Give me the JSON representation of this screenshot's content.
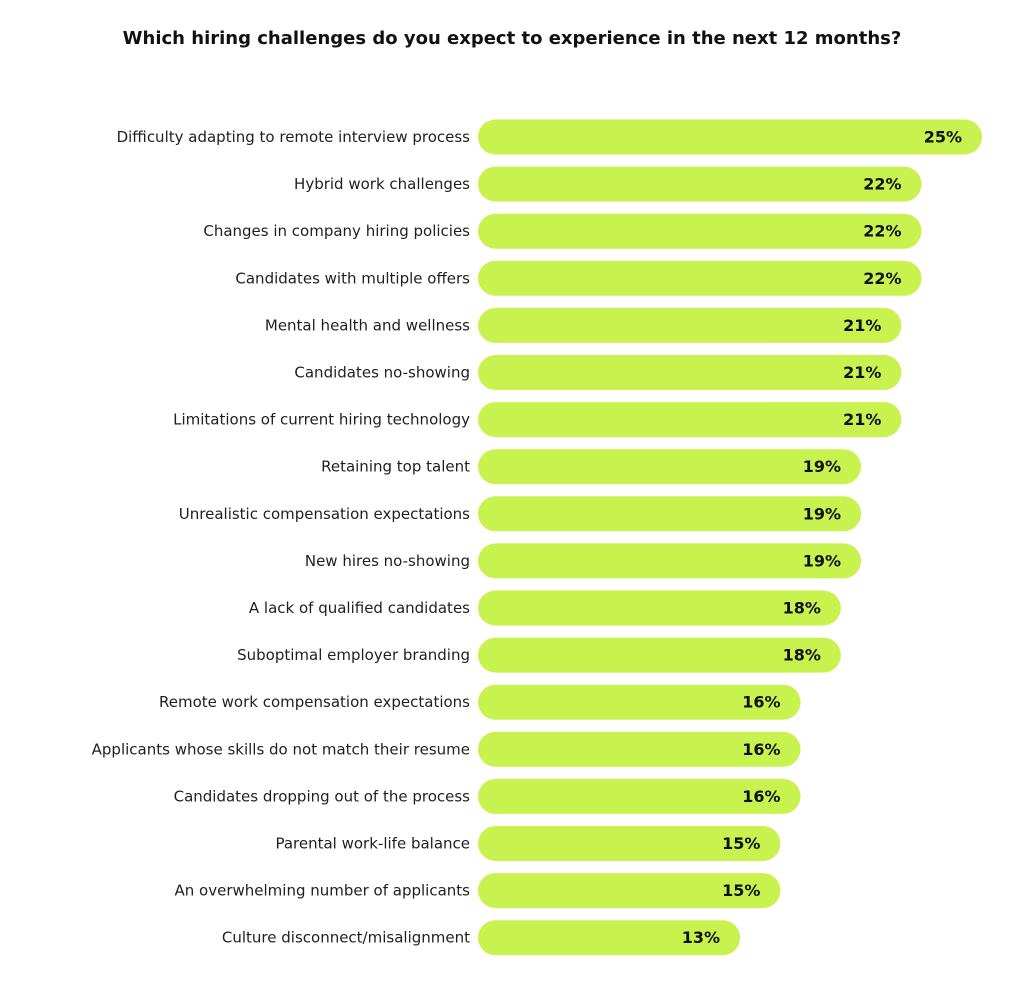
{
  "chart_data": {
    "type": "bar",
    "orientation": "horizontal",
    "title": "Which hiring challenges do you expect to experience in the next 12 months?",
    "categories": [
      "Difficulty adapting to remote interview process",
      "Hybrid work challenges",
      "Changes in company hiring policies",
      "Candidates with multiple offers",
      "Mental health and wellness",
      "Candidates no-showing",
      "Limitations of current hiring technology",
      "Retaining top talent",
      "Unrealistic compensation expectations",
      "New hires no-showing",
      "A lack of qualified candidates",
      "Suboptimal employer branding",
      "Remote work compensation expectations",
      "Applicants whose skills do not match their resume",
      "Candidates dropping out of the process",
      "Parental work-life balance",
      "An overwhelming number of applicants",
      "Culture disconnect/misalignment"
    ],
    "values": [
      25,
      22,
      22,
      22,
      21,
      21,
      21,
      19,
      19,
      19,
      18,
      18,
      16,
      16,
      16,
      15,
      15,
      13
    ],
    "value_labels": [
      "25%",
      "22%",
      "22%",
      "22%",
      "21%",
      "21%",
      "21%",
      "19%",
      "19%",
      "19%",
      "18%",
      "18%",
      "16%",
      "16%",
      "16%",
      "15%",
      "15%",
      "13%"
    ],
    "unit": "%",
    "xlim": [
      0,
      25
    ],
    "grid": false,
    "legend": "none",
    "bar_color": "#c8f24e"
  }
}
